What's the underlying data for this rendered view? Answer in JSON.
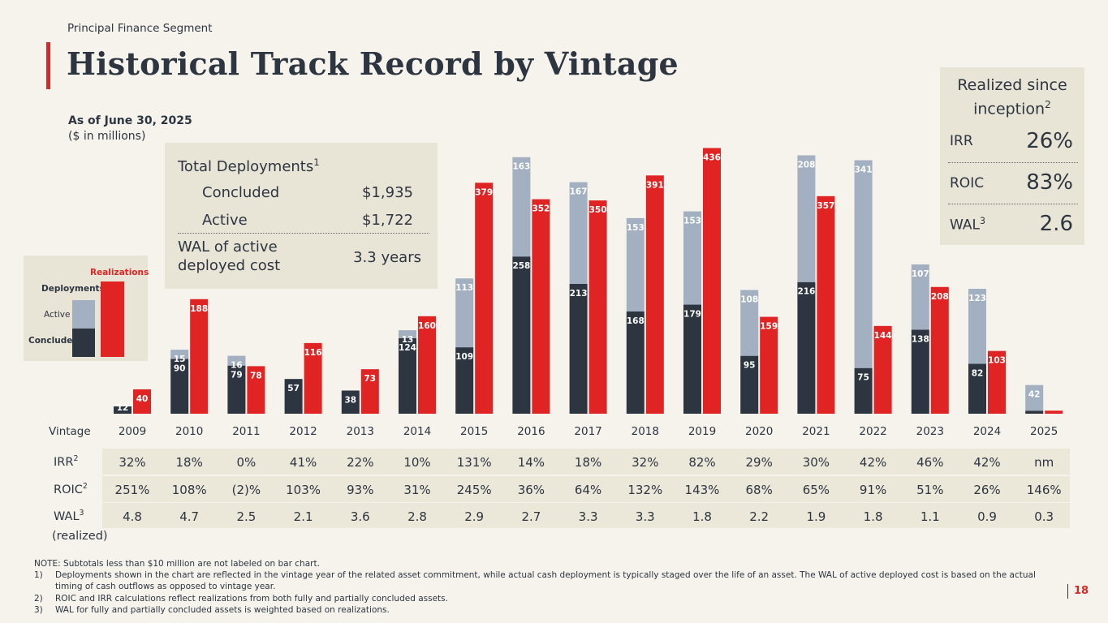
{
  "header": {
    "segment": "Principal Finance Segment",
    "title": "Historical Track Record by Vintage",
    "as_of": "As of June 30, 2025",
    "units": "($ in millions)"
  },
  "colors": {
    "concluded": "#2d3541",
    "active": "#a2b0c2",
    "realizations": "#e02424",
    "accent": "#d42a2a"
  },
  "deployments_box": {
    "title": "Total Deployments",
    "title_sup": "1",
    "concluded_label": "Concluded",
    "concluded_value": "$1,935",
    "active_label": "Active",
    "active_value": "$1,722",
    "wal_label_1": "WAL of active",
    "wal_label_2": "deployed cost",
    "wal_value": "3.3 years"
  },
  "legend": {
    "realizations": "Realizations",
    "deployments": "Deployments",
    "active": "Active",
    "concluded": "Concluded"
  },
  "realized_box": {
    "title_1": "Realized since",
    "title_2": "inception",
    "title_sup": "2",
    "irr_label": "IRR",
    "irr_value": "26%",
    "roic_label": "ROIC",
    "roic_value": "83%",
    "wal_label": "WAL",
    "wal_sup": "3",
    "wal_value": "2.6"
  },
  "chart_data": {
    "type": "bar",
    "title": "Historical Track Record by Vintage",
    "ylabel": "$ in millions",
    "categories": [
      "2009",
      "2010",
      "2011",
      "2012",
      "2013",
      "2014",
      "2015",
      "2016",
      "2017",
      "2018",
      "2019",
      "2020",
      "2021",
      "2022",
      "2023",
      "2024",
      "2025"
    ],
    "series": [
      {
        "name": "Concluded",
        "values": [
          12,
          90,
          79,
          57,
          38,
          124,
          109,
          258,
          213,
          168,
          179,
          95,
          216,
          75,
          138,
          82,
          5
        ]
      },
      {
        "name": "Active",
        "values": [
          0,
          15,
          16,
          0,
          0,
          13,
          113,
          163,
          167,
          153,
          153,
          108,
          208,
          341,
          107,
          123,
          42
        ]
      },
      {
        "name": "Realizations",
        "values": [
          40,
          188,
          78,
          116,
          73,
          160,
          379,
          352,
          350,
          391,
          436,
          159,
          357,
          144,
          208,
          103,
          5
        ]
      }
    ],
    "concluded_labels": [
      "12",
      "90",
      "79",
      "57",
      "38",
      "124",
      "109",
      "258",
      "213",
      "168",
      "179",
      "95",
      "216",
      "75",
      "138",
      "82",
      ""
    ],
    "active_labels": [
      "",
      "15",
      "16",
      "",
      "",
      "13",
      "113",
      "163",
      "167",
      "153",
      "153",
      "108",
      "208",
      "341",
      "107",
      "123",
      "42"
    ],
    "realization_labels": [
      "40",
      "188",
      "78",
      "116",
      "73",
      "160",
      "379",
      "352",
      "350",
      "391",
      "436",
      "159",
      "357",
      "144",
      "208",
      "103",
      ""
    ],
    "ylim": [
      0,
      450
    ],
    "note": "Subtotals less than $10 million are not labeled on bar chart."
  },
  "table": {
    "vintage_label": "Vintage",
    "irr_label": "IRR",
    "irr_sup": "2",
    "roic_label": "ROIC",
    "roic_sup": "2",
    "wal_label": "WAL",
    "wal_sup": "3",
    "realized_label": "(realized)",
    "irr": [
      "32%",
      "18%",
      "0%",
      "41%",
      "22%",
      "10%",
      "131%",
      "14%",
      "18%",
      "32%",
      "82%",
      "29%",
      "30%",
      "42%",
      "46%",
      "42%",
      "nm"
    ],
    "roic": [
      "251%",
      "108%",
      "(2)%",
      "103%",
      "93%",
      "31%",
      "245%",
      "36%",
      "64%",
      "132%",
      "143%",
      "68%",
      "65%",
      "91%",
      "51%",
      "26%",
      "146%"
    ],
    "wal": [
      "4.8",
      "4.7",
      "2.5",
      "2.1",
      "3.6",
      "2.8",
      "2.9",
      "2.7",
      "3.3",
      "3.3",
      "1.8",
      "2.2",
      "1.9",
      "1.8",
      "1.1",
      "0.9",
      "0.3"
    ]
  },
  "notes": {
    "intro": "NOTE: Subtotals less than $10 million are not labeled on bar chart.",
    "items": [
      {
        "num": "1)",
        "text": "Deployments shown in the chart are reflected in the vintage year of the related asset commitment, while actual cash deployment is typically staged over the life of an asset. The WAL of active deployed cost is based on the actual timing of cash outflows as opposed to vintage year."
      },
      {
        "num": "2)",
        "text": "ROIC and IRR calculations reflect realizations from both fully and partially concluded assets."
      },
      {
        "num": "3)",
        "text": "WAL for fully and partially concluded assets is weighted based on realizations."
      }
    ]
  },
  "page_number": "18"
}
